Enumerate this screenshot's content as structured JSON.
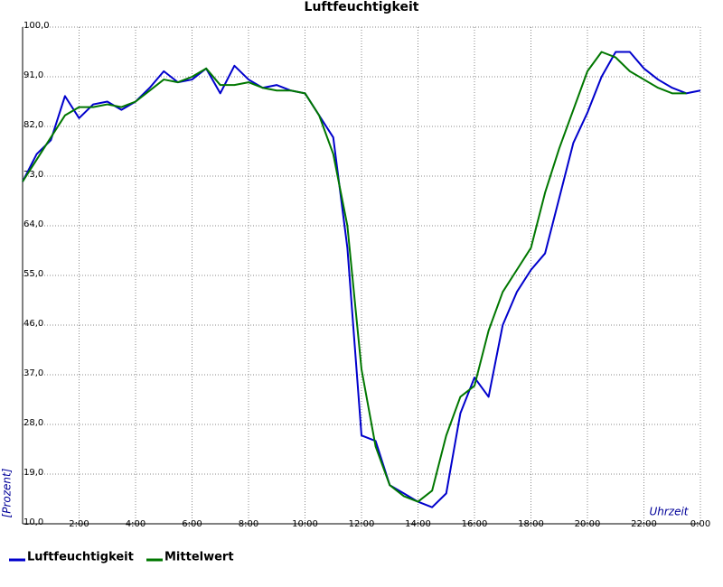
{
  "chart_data": {
    "type": "line",
    "title": "Luftfeuchtigkeit",
    "x_label": "Uhrzeit",
    "y_label": "[Prozent]",
    "x": [
      0,
      0.5,
      1,
      1.5,
      2,
      2.5,
      3,
      3.5,
      4,
      4.5,
      5,
      5.5,
      6,
      6.5,
      7,
      7.5,
      8,
      8.5,
      9,
      9.5,
      10,
      10.5,
      11,
      11.5,
      12,
      12.5,
      13,
      13.5,
      14,
      14.5,
      15,
      15.5,
      16,
      16.5,
      17,
      17.5,
      18,
      18.5,
      19,
      19.5,
      20,
      20.5,
      21,
      21.5,
      22,
      22.5,
      23,
      23.5,
      24
    ],
    "series": [
      {
        "name": "Luftfeuchtigkeit",
        "color": "#0000cc",
        "values": [
          72,
          77,
          79.5,
          87.5,
          83.5,
          86,
          86.5,
          85,
          86.5,
          89,
          92,
          90,
          90.5,
          92.5,
          88,
          93,
          90.5,
          89,
          89.5,
          88.5,
          88,
          84,
          80,
          60,
          26,
          25,
          17,
          15.5,
          14,
          13,
          15.5,
          30,
          36.5,
          33,
          46,
          52,
          56,
          59,
          69,
          79,
          84.5,
          91,
          95.5,
          95.5,
          92.5,
          90.5,
          89,
          88,
          88.5
        ]
      },
      {
        "name": "Mittelwert",
        "color": "#007700",
        "values": [
          72,
          76,
          80,
          84,
          85.5,
          85.5,
          86,
          85.5,
          86.5,
          88.5,
          90.5,
          90,
          91,
          92.5,
          89.5,
          89.5,
          90,
          89,
          88.5,
          88.5,
          88,
          84,
          77,
          64,
          38,
          24,
          17,
          15,
          14,
          16,
          26,
          33,
          35,
          45,
          52,
          56,
          60,
          70,
          78,
          85,
          92,
          95.5,
          94.5,
          92,
          90.5,
          89,
          88,
          88,
          null
        ]
      }
    ],
    "xlim": [
      0,
      24
    ],
    "xticks": [
      {
        "value": 2,
        "label": "2:00"
      },
      {
        "value": 4,
        "label": "4:00"
      },
      {
        "value": 6,
        "label": "6:00"
      },
      {
        "value": 8,
        "label": "8:00"
      },
      {
        "value": 10,
        "label": "10:00"
      },
      {
        "value": 12,
        "label": "12:00"
      },
      {
        "value": 14,
        "label": "14:00"
      },
      {
        "value": 16,
        "label": "16:00"
      },
      {
        "value": 18,
        "label": "18:00"
      },
      {
        "value": 20,
        "label": "20:00"
      },
      {
        "value": 22,
        "label": "22:00"
      },
      {
        "value": 24,
        "label": "0:00"
      }
    ],
    "ylim": [
      10,
      100
    ],
    "yticks": [
      {
        "value": 10,
        "label": "10,0"
      },
      {
        "value": 19,
        "label": "19,0"
      },
      {
        "value": 28,
        "label": "28,0"
      },
      {
        "value": 37,
        "label": "37,0"
      },
      {
        "value": 46,
        "label": "46,0"
      },
      {
        "value": 55,
        "label": "55,0"
      },
      {
        "value": 64,
        "label": "64,0"
      },
      {
        "value": 73,
        "label": "73,0"
      },
      {
        "value": 82,
        "label": "82,0"
      },
      {
        "value": 91,
        "label": "91,0"
      },
      {
        "value": 100,
        "label": "100,0"
      }
    ],
    "grid": true
  }
}
